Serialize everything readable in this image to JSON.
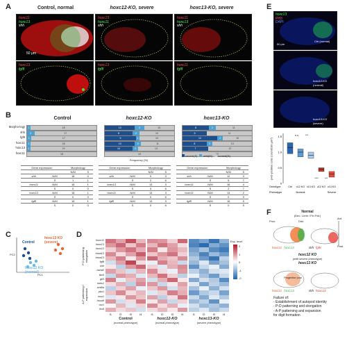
{
  "panel_labels": {
    "a": "A",
    "b": "B",
    "c": "C",
    "d": "D",
    "e": "E",
    "f": "F"
  },
  "panelA": {
    "titles": [
      "Control, normal",
      "hoxc12-KO, severe",
      "hoxc13-KO, severe"
    ],
    "top_labels": [
      [
        "hoxc11",
        "hoxc13",
        "shh"
      ],
      [
        "hoxc13",
        "hoxc11",
        "shh"
      ],
      [
        "hoxc11",
        "hoxc13",
        "shh"
      ]
    ],
    "bottom_labels": [
      [
        "hoxc13",
        "fgf8"
      ],
      [
        "hoxc13",
        "fgf8"
      ],
      [
        "hoxc11",
        "fgf8"
      ]
    ],
    "scale": "50 μm"
  },
  "panelB": {
    "group_titles": [
      "Control",
      "hoxc12-KO",
      "hoxc13-KO"
    ],
    "row_labels": [
      "Morpho-logy",
      "shh",
      "fgf8",
      "hoxc11",
      "hoxc13",
      "hoxc11"
    ],
    "xlabel": "Frequency (%)",
    "legend": [
      "severe(S)",
      "mild(M)",
      "normal(N)"
    ],
    "colors": {
      "severe": "#1f4e8c",
      "mild": "#4aa3d8",
      "normal": "#c8c8c8"
    },
    "bars": [
      [
        [
          0,
          1,
          18
        ],
        [
          0,
          2,
          17
        ],
        [
          0,
          1,
          17
        ],
        [
          0,
          1,
          18
        ],
        [
          0,
          1,
          19
        ],
        [
          0,
          0,
          18
        ]
      ],
      [
        [
          10,
          3,
          10
        ],
        [
          8,
          2,
          10
        ],
        [
          9,
          1,
          10
        ],
        [
          10,
          2,
          11
        ],
        [
          10,
          2,
          13
        ],
        [
          0,
          0,
          19
        ]
      ],
      [
        [
          8,
          2,
          11
        ],
        [
          6,
          0,
          11
        ],
        [
          12,
          2,
          10
        ],
        [
          8,
          2,
          13
        ],
        [
          7,
          0,
          12
        ],
        [
          0,
          0,
          22
        ]
      ]
    ],
    "tables": {
      "headers": [
        "Gene expression",
        "Morphology"
      ],
      "sub": [
        "N/M",
        "S"
      ],
      "group_rows": [
        [
          [
            "shh",
            "N/M",
            "18",
            "0"
          ],
          [
            "",
            "S",
            "1",
            "1"
          ],
          [
            "hoxc11",
            "N/M",
            "18",
            "1"
          ],
          [
            "",
            "S",
            "0",
            "0"
          ],
          [
            "hoxc13",
            "N/M",
            "18",
            "1"
          ],
          [
            "",
            "S",
            "0",
            "0"
          ],
          [
            "fgf8",
            "N/M",
            "18",
            "1"
          ],
          [
            "",
            "S",
            "0",
            "0"
          ]
        ],
        [
          [
            "shh",
            "N/M",
            "9",
            "3"
          ],
          [
            "",
            "S",
            "2",
            "6"
          ],
          [
            "hoxc13",
            "N/M",
            "13",
            "3"
          ],
          [
            "",
            "S",
            "0",
            "6"
          ],
          [
            "hoxc11",
            "N/M",
            "13",
            "3"
          ],
          [
            "",
            "S",
            "0",
            "6"
          ],
          [
            "fgf8",
            "N/M",
            "13",
            "3"
          ],
          [
            "",
            "S",
            "0",
            "6"
          ]
        ],
        [
          [
            "shh",
            "N/M",
            "12",
            "3"
          ],
          [
            "",
            "S",
            "5",
            "7"
          ],
          [
            "hoxc11",
            "N/M",
            "16",
            "4"
          ],
          [
            "",
            "S",
            "2",
            "7"
          ],
          [
            "hoxc11",
            "N/M",
            "13",
            "2"
          ],
          [
            "",
            "S",
            "0",
            "9"
          ],
          [
            "fgf8",
            "N/M",
            "16",
            "5"
          ],
          [
            "",
            "S",
            "0",
            "5"
          ]
        ]
      ]
    }
  },
  "panelC": {
    "labels": [
      "Control",
      "hoxc12 KO (normal)",
      "hoxc13 KO (severe)"
    ],
    "axis": [
      "PC1",
      "PC2"
    ],
    "colors": [
      "#1b4f8a",
      "#6fb7e0",
      "#e2683c"
    ]
  },
  "panelD": {
    "genes": [
      "hoxc11",
      "hoxc13",
      "hoxc12",
      "hoxd13",
      "hoxa13",
      "fgf8",
      "shh",
      "hand2",
      "tbx5",
      "gli3",
      "meis1",
      "wnt5a",
      "pbx1",
      "msx1",
      "hoxa9",
      "osr1",
      "lhx9"
    ],
    "columns": [
      "f1",
      "f2",
      "f3",
      "f4",
      "f1",
      "f2",
      "f3",
      "f4",
      "f1",
      "f2",
      "f3",
      "f4"
    ],
    "groups": [
      "Control",
      "hoxc12-KO",
      "hoxc13-KO"
    ],
    "groups_sub": [
      "(normal phenotype)",
      "(normal phenotype)",
      "(severe phenotype)"
    ],
    "side_labels": [
      "P-D patterning elongation",
      "A-P patterning / expansion"
    ],
    "legend_title": "Exp. level",
    "legend_ticks": [
      "2",
      "1",
      "0",
      "-1",
      "-2"
    ],
    "matrix": [
      [
        1.2,
        0.8,
        1.5,
        0.6,
        1.0,
        0.9,
        0.4,
        1.3,
        -1.5,
        -1.2,
        -1.8,
        -1.0
      ],
      [
        0.9,
        1.3,
        0.5,
        1.1,
        0.6,
        1.2,
        0.8,
        0.3,
        -1.6,
        -1.9,
        -1.1,
        -1.4
      ],
      [
        0.4,
        0.9,
        1.2,
        0.7,
        1.1,
        0.2,
        0.9,
        0.6,
        -1.2,
        -0.8,
        -1.5,
        -1.7
      ],
      [
        1.0,
        0.3,
        0.8,
        1.4,
        0.5,
        0.9,
        1.2,
        0.4,
        -1.0,
        -1.6,
        -0.9,
        -1.3
      ],
      [
        0.6,
        1.1,
        0.2,
        0.9,
        1.3,
        0.7,
        0.5,
        1.0,
        -0.7,
        -1.3,
        -1.8,
        -0.6
      ],
      [
        -0.4,
        0.8,
        1.6,
        0.3,
        -0.2,
        1.1,
        0.6,
        -0.5,
        -0.9,
        -0.3,
        -1.2,
        -0.8
      ],
      [
        0.2,
        -0.6,
        0.9,
        1.3,
        0.4,
        -0.3,
        0.7,
        1.0,
        -1.4,
        -0.5,
        -0.2,
        -1.1
      ],
      [
        0.8,
        0.5,
        -0.4,
        0.6,
        1.0,
        0.3,
        -0.2,
        0.9,
        -0.6,
        -1.0,
        -0.4,
        -0.3
      ],
      [
        -0.5,
        0.9,
        0.7,
        -0.3,
        0.6,
        1.2,
        0.4,
        -0.6,
        -0.2,
        -0.8,
        -1.3,
        -0.5
      ],
      [
        1.1,
        -0.2,
        0.5,
        0.8,
        -0.4,
        0.7,
        1.3,
        0.2,
        -1.1,
        -0.4,
        -0.7,
        -1.5
      ],
      [
        0.3,
        0.7,
        -0.6,
        1.0,
        0.9,
        -0.5,
        0.2,
        0.8,
        -0.3,
        -1.2,
        -0.6,
        -0.9
      ],
      [
        -0.6,
        0.4,
        0.8,
        -0.2,
        0.5,
        0.9,
        -0.4,
        0.6,
        -0.8,
        -0.2,
        -1.0,
        -0.4
      ],
      [
        0.5,
        1.0,
        0.3,
        0.6,
        -0.3,
        0.4,
        1.1,
        0.7,
        -1.3,
        -0.7,
        -0.5,
        -1.2
      ],
      [
        -0.3,
        0.2,
        0.9,
        0.5,
        0.8,
        -0.6,
        0.3,
        1.2,
        -0.5,
        -1.1,
        -0.3,
        -0.7
      ],
      [
        0.9,
        -0.4,
        0.3,
        1.1,
        0.2,
        0.8,
        -0.5,
        0.4,
        -0.9,
        -0.6,
        -1.4,
        -0.2
      ],
      [
        0.1,
        0.6,
        -0.3,
        0.4,
        1.0,
        0.3,
        0.7,
        -0.2,
        -0.4,
        -0.9,
        -0.7,
        -1.0
      ],
      [
        0.7,
        0.3,
        0.5,
        -0.4,
        0.3,
        0.6,
        0.2,
        0.9,
        -0.6,
        -0.3,
        -0.8,
        -0.5
      ]
    ]
  },
  "panelE": {
    "labels": [
      "hoxc13",
      "PH3",
      "DAPI"
    ],
    "image_captions": [
      "Ctrl (normal)",
      "hoxc12-KO (normal)",
      "hoxc13-KO (severe)"
    ],
    "scale": "50 μm",
    "ylabel": "pH3-positive cells (count/100 μm²)",
    "genotype_label": "Genotype",
    "phenotype_label": "Phenotype",
    "genotypes": [
      "Ctrl",
      "c12 KO",
      "c13 KO",
      "c12 KO",
      "c13 KO"
    ],
    "phenotypes": [
      "Normal",
      "Severe"
    ],
    "yticks": [
      "1.5",
      "1.0",
      "0.5",
      "0"
    ],
    "sig": [
      "n.s.",
      "***",
      "****",
      "***"
    ],
    "chart_data": {
      "type": "box",
      "categories": [
        "Ctrl",
        "c12 KO",
        "c13 KO",
        "c12 KO",
        "c13 KO"
      ],
      "medians": [
        1.15,
        1.0,
        0.9,
        0.45,
        0.3
      ],
      "q1": [
        0.95,
        0.85,
        0.8,
        0.38,
        0.2
      ],
      "q3": [
        1.3,
        1.1,
        1.0,
        0.5,
        0.38
      ],
      "ylim": [
        0,
        1.6
      ],
      "colors": [
        "#2a67b0",
        "#5b9bd5",
        "#a9cbe8",
        "#c0392b",
        "#e74c3c"
      ]
    }
  },
  "panelF": {
    "normal_title": "Normal",
    "normal_sub": "(Dev.: Limb / Fin Pat.)",
    "prox": "Prox.",
    "dist": "Dist.",
    "ant": "Ant.",
    "post": "Post.",
    "genes_normal": [
      "hoxc11",
      "hoxc13",
      "shh",
      "fgf8"
    ],
    "hoxc12_title": "hoxc12 KO",
    "hoxc12_sub": "(with severe phenotype)",
    "hoxc13_title": "hoxc13 KO",
    "progenitor": "Progenitor pool",
    "genes_ko": [
      "hoxc11",
      "hoxc13",
      "shh",
      "hoxc13"
    ],
    "failure_title": "Failure of:",
    "failures": [
      "- Establishment of autopod identity",
      "- P-D patterning and elongation",
      "- A-P patterning and expansion",
      "  for digit formation"
    ]
  }
}
